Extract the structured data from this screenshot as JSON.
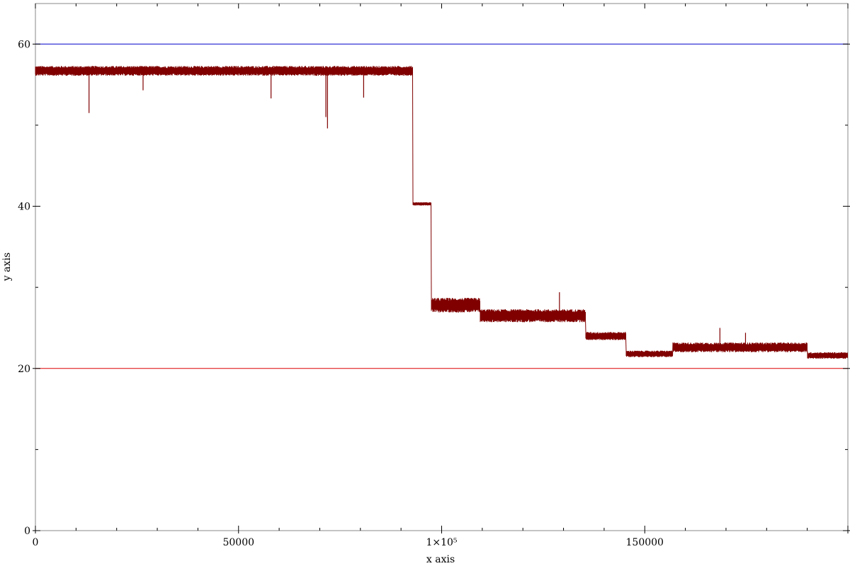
{
  "chart_data": {
    "type": "line",
    "title": "",
    "xlabel": "x axis",
    "ylabel": "y axis",
    "xlim": [
      0,
      200000
    ],
    "ylim": [
      0,
      65
    ],
    "grid": false,
    "x_ticks": [
      {
        "value": 0,
        "label": "0"
      },
      {
        "value": 50000,
        "label": "50000"
      },
      {
        "value": 100000,
        "label": "1×10⁵"
      },
      {
        "value": 150000,
        "label": "150000"
      }
    ],
    "y_ticks": [
      {
        "value": 0,
        "label": "0"
      },
      {
        "value": 20,
        "label": "20"
      },
      {
        "value": 40,
        "label": "40"
      },
      {
        "value": 60,
        "label": "60"
      }
    ],
    "reference_lines": [
      {
        "y": 60,
        "color": "#0000cc"
      },
      {
        "y": 20,
        "color": "#dd0000"
      }
    ],
    "series": [
      {
        "color": "#800000",
        "segments": [
          {
            "x0": 0,
            "x1": 93000,
            "base": 56.7,
            "noise": 0.6
          },
          {
            "x0": 93000,
            "x1": 97500,
            "base": 40.3,
            "noise": 0.2
          },
          {
            "x0": 97500,
            "x1": 109500,
            "base": 27.8,
            "noise": 0.9
          },
          {
            "x0": 109500,
            "x1": 135500,
            "base": 26.5,
            "noise": 0.8
          },
          {
            "x0": 135500,
            "x1": 145500,
            "base": 24.0,
            "noise": 0.5
          },
          {
            "x0": 145500,
            "x1": 157000,
            "base": 21.8,
            "noise": 0.4
          },
          {
            "x0": 157000,
            "x1": 190000,
            "base": 22.6,
            "noise": 0.6
          },
          {
            "x0": 190000,
            "x1": 200000,
            "base": 21.6,
            "noise": 0.4
          }
        ],
        "spikes": [
          {
            "x": 13200,
            "y": 51.5
          },
          {
            "x": 26500,
            "y": 54.3
          },
          {
            "x": 58000,
            "y": 53.3
          },
          {
            "x": 71500,
            "y": 51.0
          },
          {
            "x": 71900,
            "y": 49.6
          },
          {
            "x": 80800,
            "y": 53.4
          },
          {
            "x": 129000,
            "y": 29.4
          },
          {
            "x": 168500,
            "y": 25.0
          },
          {
            "x": 174800,
            "y": 24.4
          }
        ]
      }
    ]
  }
}
